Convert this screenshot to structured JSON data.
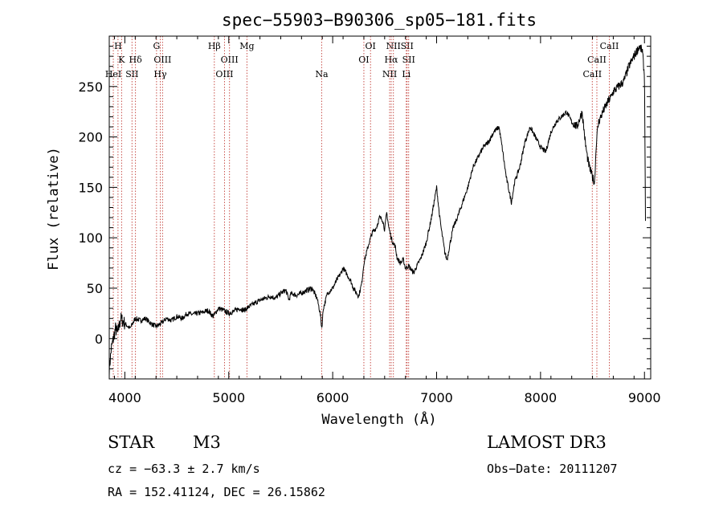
{
  "chart_data": {
    "type": "line",
    "title": "spec−55903−B90306_sp05−181.fits",
    "xlabel": "Wavelength (Å)",
    "ylabel": "Flux (relative)",
    "xlim": [
      3850,
      9060
    ],
    "ylim": [
      -40,
      300
    ],
    "x_ticks": [
      4000,
      5000,
      6000,
      7000,
      8000,
      9000
    ],
    "y_ticks": [
      0,
      50,
      100,
      150,
      200,
      250
    ],
    "series": [
      {
        "name": "flux",
        "x": [
          3850,
          3870,
          3890,
          3910,
          3930,
          3960,
          4000,
          4050,
          4100,
          4150,
          4200,
          4250,
          4300,
          4350,
          4400,
          4450,
          4500,
          4550,
          4600,
          4650,
          4700,
          4750,
          4800,
          4850,
          4900,
          4950,
          5000,
          5050,
          5100,
          5150,
          5200,
          5250,
          5300,
          5350,
          5400,
          5450,
          5500,
          5550,
          5580,
          5600,
          5650,
          5700,
          5750,
          5800,
          5850,
          5880,
          5895,
          5910,
          5950,
          6000,
          6050,
          6080,
          6100,
          6130,
          6170,
          6200,
          6250,
          6280,
          6300,
          6350,
          6380,
          6420,
          6450,
          6480,
          6500,
          6520,
          6540,
          6563,
          6580,
          6600,
          6620,
          6650,
          6680,
          6700,
          6730,
          6760,
          6780,
          6800,
          6850,
          6900,
          6950,
          7000,
          7030,
          7050,
          7080,
          7100,
          7130,
          7160,
          7200,
          7250,
          7300,
          7350,
          7400,
          7450,
          7500,
          7550,
          7600,
          7630,
          7650,
          7670,
          7700,
          7720,
          7750,
          7800,
          7850,
          7900,
          7950,
          8000,
          8050,
          8100,
          8150,
          8200,
          8250,
          8300,
          8350,
          8400,
          8430,
          8450,
          8470,
          8500,
          8520,
          8540,
          8560,
          8600,
          8650,
          8680,
          8700,
          8750,
          8800,
          8850,
          8900,
          8950,
          8980,
          9000,
          9010
        ],
        "y": [
          -30,
          -10,
          0,
          10,
          5,
          20,
          15,
          10,
          20,
          18,
          20,
          15,
          12,
          15,
          20,
          18,
          22,
          20,
          25,
          24,
          25,
          26,
          28,
          22,
          30,
          28,
          25,
          27,
          30,
          28,
          32,
          35,
          38,
          40,
          42,
          40,
          45,
          48,
          38,
          45,
          43,
          45,
          48,
          50,
          40,
          25,
          10,
          30,
          45,
          50,
          60,
          65,
          70,
          65,
          58,
          50,
          42,
          55,
          75,
          95,
          105,
          110,
          120,
          118,
          108,
          125,
          110,
          100,
          95,
          92,
          80,
          75,
          78,
          70,
          72,
          68,
          65,
          70,
          80,
          95,
          120,
          150,
          120,
          105,
          85,
          78,
          95,
          110,
          120,
          135,
          150,
          170,
          180,
          190,
          195,
          205,
          210,
          190,
          175,
          160,
          145,
          135,
          155,
          170,
          195,
          210,
          200,
          190,
          185,
          205,
          215,
          220,
          225,
          215,
          210,
          225,
          195,
          180,
          170,
          160,
          155,
          200,
          215,
          225,
          235,
          240,
          245,
          250,
          255,
          270,
          280,
          290,
          285,
          260,
          120
        ]
      }
    ],
    "line_markers": [
      {
        "label": "H",
        "wavelength": 3934,
        "row": 1
      },
      {
        "label": "K",
        "wavelength": 3969,
        "row": 2
      },
      {
        "label": "HeI",
        "wavelength": 3889,
        "row": 3
      },
      {
        "label": "SII",
        "wavelength": 4069,
        "row": 3
      },
      {
        "label": "Hδ",
        "wavelength": 4102,
        "row": 2
      },
      {
        "label": "G",
        "wavelength": 4305,
        "row": 1
      },
      {
        "label": "OIII",
        "wavelength": 4363,
        "row": 2
      },
      {
        "label": "Hγ",
        "wavelength": 4341,
        "row": 3
      },
      {
        "label": "Hβ",
        "wavelength": 4861,
        "row": 1
      },
      {
        "label": "OIII",
        "wavelength": 5007,
        "row": 2
      },
      {
        "label": "OIII",
        "wavelength": 4959,
        "row": 3
      },
      {
        "label": "Mg",
        "wavelength": 5175,
        "row": 1
      },
      {
        "label": "Na",
        "wavelength": 5894,
        "row": 3
      },
      {
        "label": "OI",
        "wavelength": 6364,
        "row": 1
      },
      {
        "label": "OI",
        "wavelength": 6300,
        "row": 2
      },
      {
        "label": "NII",
        "wavelength": 6584,
        "row": 1
      },
      {
        "label": "SII",
        "wavelength": 6716,
        "row": 1
      },
      {
        "label": "Hα",
        "wavelength": 6563,
        "row": 2
      },
      {
        "label": "SII",
        "wavelength": 6731,
        "row": 2
      },
      {
        "label": "NII",
        "wavelength": 6548,
        "row": 3
      },
      {
        "label": "Li",
        "wavelength": 6708,
        "row": 3
      },
      {
        "label": "CaII",
        "wavelength": 8662,
        "row": 1
      },
      {
        "label": "CaII",
        "wavelength": 8542,
        "row": 2
      },
      {
        "label": "CaII",
        "wavelength": 8498,
        "row": 3
      }
    ]
  },
  "info": {
    "class_label": "STAR",
    "subclass": "M3",
    "survey": "LAMOST DR3",
    "redshift": "cz = −63.3 ± 2.7 km/s",
    "obs_date": "Obs−Date: 20111207",
    "coords": "RA = 152.41124, DEC =  26.15862"
  },
  "colors": {
    "axis": "#000000",
    "spectrum": "#000000",
    "line_marker": "#c8504a"
  }
}
